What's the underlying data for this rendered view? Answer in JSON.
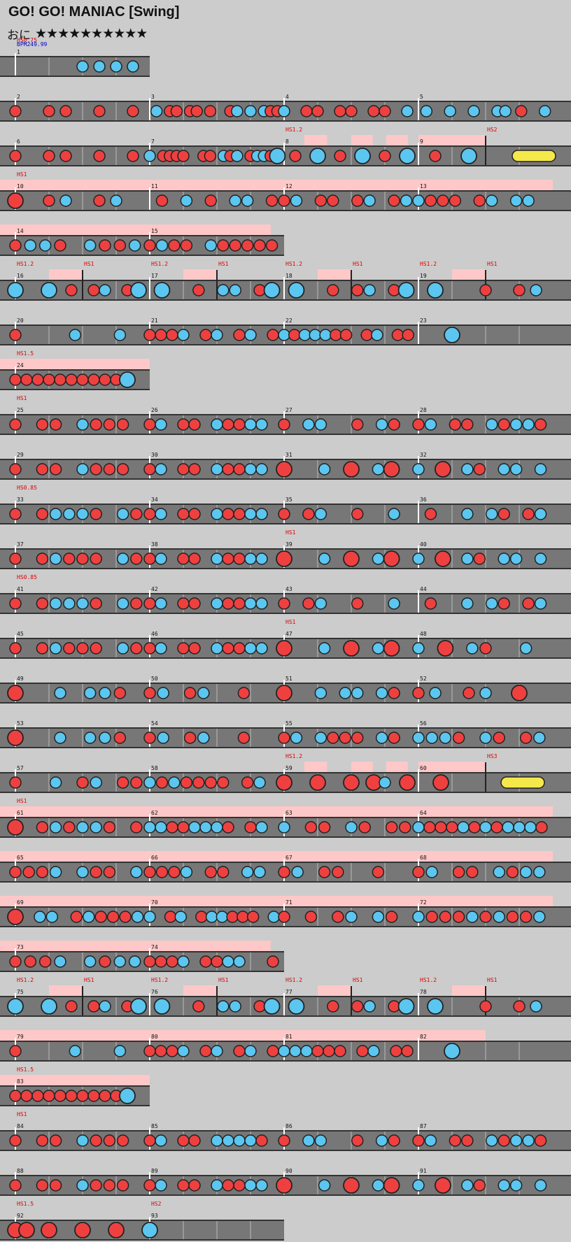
{
  "song": {
    "title": "GO! GO! MANIAC [Swing]",
    "difficulty_label": "おに",
    "stars": "★★★★★★★★★★"
  },
  "colors": {
    "background": "#cccccc",
    "lane": "#777777",
    "don_note": "#ef4040",
    "ka_note": "#5bc6f0",
    "drumroll": "#f5e84a",
    "speed_zone": "#ffc8c8",
    "scroll_label": "#dd0000",
    "bpm_label": "#0000cc",
    "barline": "#ffffff"
  },
  "icons": {
    "don_note": "red-circle",
    "ka_note": "blue-circle",
    "drumroll": "yellow-capsule"
  },
  "chart_data": {
    "type": "taiko_chart",
    "rows": [
      {
        "measures": [
          1
        ],
        "labels": [
          {
            "m": 0,
            "t": "HS0.75"
          },
          {
            "m": 0,
            "t": "BPM249.99",
            "kind": "bpm"
          }
        ],
        "notes": "....kkkk|..k...k.|"
      },
      {
        "measures": [
          2,
          3,
          4,
          5
        ],
        "labels": [],
        "notes": "d.dd.d.d|.k.dd.dd.d..dk.k.kdd|k.dd.dd.dd.k|.k..k..k..kk.d..k|"
      },
      {
        "measures": [
          6,
          7,
          8,
          9
        ],
        "labels": [
          {
            "m": 2,
            "t": "HS1.2"
          },
          {
            "m": 3,
            "t": "HS2",
            "pos": 0.5
          }
        ],
        "notes": "d.dd.d.d|k.dddd..dd.kdk.dkkdK|.d.K.d.K.d.K|.d.K..R.|",
        "zones": [
          [
            2,
            0.15,
            0.32
          ],
          [
            2,
            0.5,
            0.66
          ],
          [
            2,
            0.76,
            0.92
          ],
          [
            3,
            0.0,
            0.5
          ]
        ]
      },
      {
        "measures": [
          10,
          11,
          12,
          13
        ],
        "labels": [
          {
            "m": 0,
            "t": "HS1"
          }
        ],
        "notes": "D.dk.dk.|.d.k.d.kk.d|dk.dd.dk.dk|kddd.dk.kk.|",
        "zones": [
          [
            0,
            0.0,
            1.0
          ],
          [
            1,
            0.0,
            1.0
          ],
          [
            2,
            0.0,
            1.0
          ],
          [
            3,
            0.0,
            1.0
          ]
        ]
      },
      {
        "measures": [
          14,
          15
        ],
        "labels": [],
        "notes": "dkkd.kddk|dkdd.kddddd|",
        "zones": [
          [
            0,
            0.0,
            1.0
          ],
          [
            1,
            0.0,
            0.9
          ]
        ]
      },
      {
        "measures": [
          16,
          17,
          18,
          19
        ],
        "labels": [
          {
            "m": 0,
            "t": "HS1.2"
          },
          {
            "m": 0,
            "t": "HS1",
            "pos": 0.5
          },
          {
            "m": 1,
            "t": "HS1.2"
          },
          {
            "m": 1,
            "t": "HS1",
            "pos": 0.5
          },
          {
            "m": 2,
            "t": "HS1.2"
          },
          {
            "m": 2,
            "t": "HS1",
            "pos": 0.5
          },
          {
            "m": 3,
            "t": "HS1.2"
          },
          {
            "m": 3,
            "t": "HS1",
            "pos": 0.5
          }
        ],
        "notes": "K..K.d.dk.dK|.K..d.kk.dK|.K..d.dk.dK|.K..d.dk|",
        "zones": [
          [
            0,
            0.25,
            0.5
          ],
          [
            1,
            0.25,
            0.5
          ],
          [
            2,
            0.25,
            0.5
          ],
          [
            3,
            0.25,
            0.5
          ]
        ]
      },
      {
        "measures": [
          20,
          21,
          22,
          23
        ],
        "labels": [],
        "notes": "d...k..k.|dddk.dk.dk.d|kdkkkdd.dk.dd|..K.....|"
      },
      {
        "measures": [
          24
        ],
        "labels": [
          {
            "m": 0,
            "t": "HS1.5"
          }
        ],
        "notes": "ddddddddddK.|",
        "zones": [
          [
            0,
            0.0,
            1.0
          ]
        ]
      },
      {
        "measures": [
          25,
          26,
          27,
          28
        ],
        "labels": [
          {
            "m": 0,
            "t": "HS1"
          }
        ],
        "notes": "d.dd.kddd.|dk.dd.kddkk.|d.kk..d.kd.|dk.dd.kdkkd|"
      },
      {
        "measures": [
          29,
          30,
          31,
          32
        ],
        "labels": [],
        "notes": "d.dd.kddd.|dk.dd.kddkk.|D..k.D.kD.|k.D.kd.kk.k|"
      },
      {
        "measures": [
          33,
          34,
          35,
          36
        ],
        "labels": [
          {
            "m": 0,
            "t": "HS0.85"
          }
        ],
        "notes": "d.dkkkd.kd|dk.dd.kddkk.|d.dk..d..k.|.d..k.kd.dk|"
      },
      {
        "measures": [
          37,
          38,
          39,
          40
        ],
        "labels": [
          {
            "m": 2,
            "t": "HS1"
          }
        ],
        "notes": "d.dkddd.kd|dk.dd.kddkk.|D..k.D.kD.|k.D.kd.kk.k|"
      },
      {
        "measures": [
          41,
          42,
          43,
          44
        ],
        "labels": [
          {
            "m": 0,
            "t": "HS0.85"
          }
        ],
        "notes": "d.dkkkd.kd|dk.dd.kddkk.|d.dk..d..k.|.d..k.kd.dk|"
      },
      {
        "measures": [
          45,
          46,
          47,
          48
        ],
        "labels": [
          {
            "m": 2,
            "t": "HS1"
          }
        ],
        "notes": "d.dkddd.kd|dk.dd.kddkk.|D..k.D.kD.|k.D.kd..k.|"
      },
      {
        "measures": [
          49,
          50,
          51,
          52
        ],
        "labels": [],
        "notes": "D..k.kkd.|dk.dk..d..|D..k.kk.kd.|dk.dk.D.|"
      },
      {
        "measures": [
          53,
          54,
          55,
          56
        ],
        "labels": [],
        "notes": "D..k.kkd.|dk.dk..d..|dk.kddd.kd.|kkkd.kd.dk|"
      },
      {
        "measures": [
          57,
          58,
          59,
          60
        ],
        "labels": [
          {
            "m": 2,
            "t": "HS1.2"
          },
          {
            "m": 3,
            "t": "HS3",
            "pos": 0.5
          }
        ],
        "notes": "d..k.dk.dd|kdkdddd.dk.|D..D..D.Dk.D|.D..R.|",
        "zones": [
          [
            2,
            0.15,
            0.32
          ],
          [
            2,
            0.5,
            0.66
          ],
          [
            2,
            0.76,
            0.92
          ],
          [
            3,
            0.0,
            0.5
          ]
        ]
      },
      {
        "measures": [
          61,
          62,
          63,
          64
        ],
        "labels": [
          {
            "m": 0,
            "t": "HS1"
          }
        ],
        "notes": "D.dkdkkd.d|kkddkkkd.dk.|k.dd.kd.dd|kdddkdkdkkkd|",
        "zones": [
          [
            0,
            0.0,
            1.0
          ],
          [
            1,
            0.0,
            1.0
          ],
          [
            2,
            0.0,
            1.0
          ],
          [
            3,
            0.0,
            1.0
          ]
        ]
      },
      {
        "measures": [
          65,
          66,
          67,
          68
        ],
        "labels": [],
        "notes": "dddk.kdd.k|dddk.dd.kk.|dk.dd..d..|dk.dd.kdkk|",
        "zones": [
          [
            0,
            0.0,
            1.0
          ],
          [
            1,
            0.0,
            1.0
          ],
          [
            2,
            0.0,
            1.0
          ],
          [
            3,
            0.0,
            1.0
          ]
        ]
      },
      {
        "measures": [
          69,
          70,
          71,
          72
        ],
        "labels": [],
        "notes": "D.kk.dkdddk|k.dk.dkkddd.k|d.d.dk.kd.|kdddkdkddk|",
        "zones": [
          [
            0,
            0.0,
            1.0
          ],
          [
            1,
            0.0,
            1.0
          ],
          [
            2,
            0.0,
            1.0
          ],
          [
            3,
            0.0,
            1.0
          ]
        ]
      },
      {
        "measures": [
          73,
          74
        ],
        "labels": [],
        "notes": "dddk.kdkk|dddk.ddkk..d|",
        "zones": [
          [
            0,
            0.0,
            1.0
          ],
          [
            1,
            0.0,
            0.9
          ]
        ]
      },
      {
        "measures": [
          75,
          76,
          77,
          78
        ],
        "labels": [
          {
            "m": 0,
            "t": "HS1.2"
          },
          {
            "m": 0,
            "t": "HS1",
            "pos": 0.5
          },
          {
            "m": 1,
            "t": "HS1.2"
          },
          {
            "m": 1,
            "t": "HS1",
            "pos": 0.5
          },
          {
            "m": 2,
            "t": "HS1.2"
          },
          {
            "m": 2,
            "t": "HS1",
            "pos": 0.5
          },
          {
            "m": 3,
            "t": "HS1.2"
          },
          {
            "m": 3,
            "t": "HS1",
            "pos": 0.5
          }
        ],
        "notes": "K..K.d.dk.dK|.K..d.kk.dK|.K..d.dk.dK|.K..d.dk|",
        "zones": [
          [
            0,
            0.25,
            0.5
          ],
          [
            1,
            0.25,
            0.5
          ],
          [
            2,
            0.25,
            0.5
          ],
          [
            3,
            0.25,
            0.5
          ]
        ]
      },
      {
        "measures": [
          79,
          80,
          81,
          82
        ],
        "labels": [],
        "notes": "d...k..k.|dddk.dk.dk.d|kkkddd.dk.dd|..K.....|",
        "zones": [
          [
            0,
            0.0,
            1.0
          ],
          [
            1,
            0.0,
            1.0
          ],
          [
            2,
            0.0,
            1.0
          ],
          [
            3,
            0.0,
            0.5
          ]
        ]
      },
      {
        "measures": [
          83
        ],
        "labels": [
          {
            "m": 0,
            "t": "HS1.5"
          }
        ],
        "notes": "ddddddddddK.|",
        "zones": [
          [
            0,
            0.0,
            1.0
          ]
        ]
      },
      {
        "measures": [
          84,
          85,
          86,
          87
        ],
        "labels": [
          {
            "m": 0,
            "t": "HS1"
          }
        ],
        "notes": "d.dd.kddd.|dk.dd.kkkkd.|d.kk..d.kd.|dk.dd.kdkkd|"
      },
      {
        "measures": [
          88,
          89,
          90,
          91
        ],
        "labels": [],
        "notes": "d.dd.kddd.|dk.dd.kddkk.|D..k.D.kD.|k.D.kd.kk.k|"
      },
      {
        "measures": [
          92,
          93
        ],
        "labels": [
          {
            "m": 0,
            "t": "HS1.5"
          },
          {
            "m": 1,
            "t": "HS2"
          }
        ],
        "notes": "DD.D..D..D..|K.......|"
      }
    ]
  }
}
